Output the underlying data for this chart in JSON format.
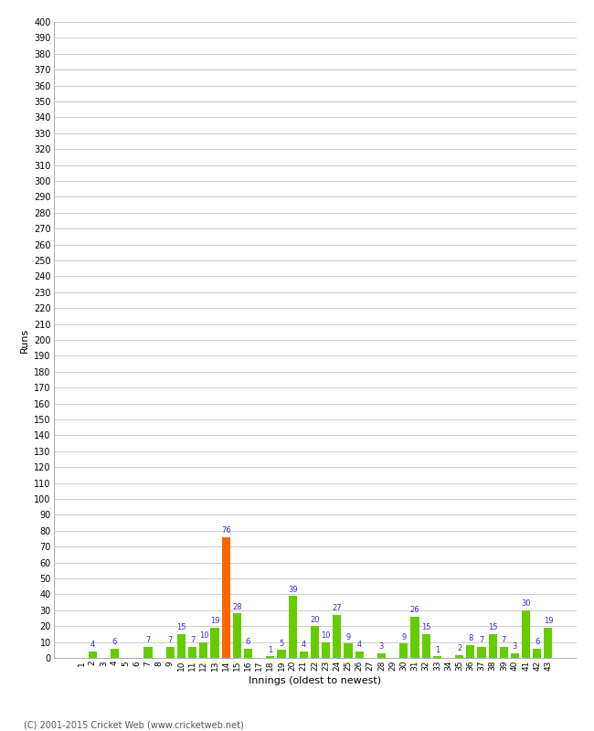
{
  "title": "",
  "xlabel": "Innings (oldest to newest)",
  "ylabel": "Runs",
  "innings": [
    1,
    2,
    3,
    4,
    5,
    6,
    7,
    8,
    9,
    10,
    11,
    12,
    13,
    14,
    15,
    16,
    17,
    18,
    19,
    20,
    21,
    22,
    23,
    24,
    25,
    26,
    27,
    28,
    29,
    30,
    31,
    32,
    33,
    34,
    35,
    36,
    37,
    38,
    39,
    40,
    41,
    42,
    43
  ],
  "values": [
    0,
    4,
    0,
    6,
    0,
    0,
    7,
    0,
    7,
    15,
    7,
    10,
    19,
    76,
    28,
    6,
    0,
    1,
    5,
    39,
    4,
    20,
    10,
    27,
    9,
    4,
    0,
    3,
    0,
    9,
    26,
    15,
    1,
    0,
    2,
    8,
    7,
    15,
    7,
    3,
    30,
    6,
    19
  ],
  "bar_colors": [
    "#66cc00",
    "#66cc00",
    "#66cc00",
    "#66cc00",
    "#66cc00",
    "#66cc00",
    "#66cc00",
    "#66cc00",
    "#66cc00",
    "#66cc00",
    "#66cc00",
    "#66cc00",
    "#66cc00",
    "#ff6600",
    "#66cc00",
    "#66cc00",
    "#66cc00",
    "#66cc00",
    "#66cc00",
    "#66cc00",
    "#66cc00",
    "#66cc00",
    "#66cc00",
    "#66cc00",
    "#66cc00",
    "#66cc00",
    "#66cc00",
    "#66cc00",
    "#66cc00",
    "#66cc00",
    "#66cc00",
    "#66cc00",
    "#66cc00",
    "#66cc00",
    "#66cc00",
    "#66cc00",
    "#66cc00",
    "#66cc00",
    "#66cc00",
    "#66cc00",
    "#66cc00",
    "#66cc00",
    "#66cc00"
  ],
  "ylim": [
    0,
    400
  ],
  "yticks": [
    0,
    10,
    20,
    30,
    40,
    50,
    60,
    70,
    80,
    90,
    100,
    110,
    120,
    130,
    140,
    150,
    160,
    170,
    180,
    190,
    200,
    210,
    220,
    230,
    240,
    250,
    260,
    270,
    280,
    290,
    300,
    310,
    320,
    330,
    340,
    350,
    360,
    370,
    380,
    390,
    400
  ],
  "label_color": "#3333cc",
  "background_color": "#ffffff",
  "grid_color": "#cccccc",
  "footer": "(C) 2001-2015 Cricket Web (www.cricketweb.net)"
}
